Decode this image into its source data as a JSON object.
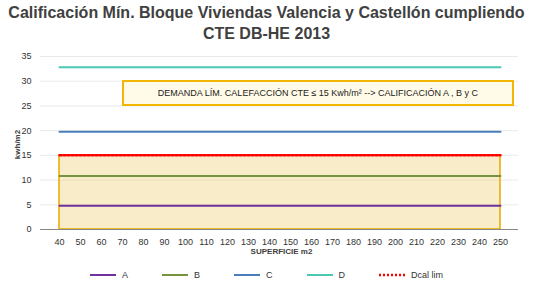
{
  "chart_data": {
    "type": "line",
    "title": "Calificación Mín. Bloque Viviendas Valencia y Castellón cumpliendo CTE DB-HE 2013",
    "x_label": "SUPERFICIE  m2",
    "y_label": "kwh/m2",
    "annotation": "DEMANDA LÍM. CALEFACCIÓN  CTE ≤ 15 Kwh/m² --> CALIFICACIÓN A , B y C",
    "categories": [
      40,
      50,
      60,
      70,
      80,
      90,
      100,
      110,
      120,
      130,
      140,
      150,
      160,
      170,
      180,
      190,
      200,
      210,
      220,
      230,
      240,
      250
    ],
    "series": [
      {
        "name": "A",
        "color": "#7030a0",
        "line_style": "solid",
        "values": [
          4.8,
          4.8,
          4.8,
          4.8,
          4.8,
          4.8,
          4.8,
          4.8,
          4.8,
          4.8,
          4.8,
          4.8,
          4.8,
          4.8,
          4.8,
          4.8,
          4.8,
          4.8,
          4.8,
          4.8,
          4.8,
          4.8
        ]
      },
      {
        "name": "B",
        "color": "#77933c",
        "line_style": "solid",
        "values": [
          10.8,
          10.8,
          10.8,
          10.8,
          10.8,
          10.8,
          10.8,
          10.8,
          10.8,
          10.8,
          10.8,
          10.8,
          10.8,
          10.8,
          10.8,
          10.8,
          10.8,
          10.8,
          10.8,
          10.8,
          10.8,
          10.8
        ]
      },
      {
        "name": "C",
        "color": "#4a7ebb",
        "line_style": "solid",
        "values": [
          19.8,
          19.8,
          19.8,
          19.8,
          19.8,
          19.8,
          19.8,
          19.8,
          19.8,
          19.8,
          19.8,
          19.8,
          19.8,
          19.8,
          19.8,
          19.8,
          19.8,
          19.8,
          19.8,
          19.8,
          19.8,
          19.8
        ]
      },
      {
        "name": "D",
        "color": "#4bc8b4",
        "line_style": "solid",
        "values": [
          32.8,
          32.8,
          32.8,
          32.8,
          32.8,
          32.8,
          32.8,
          32.8,
          32.8,
          32.8,
          32.8,
          32.8,
          32.8,
          32.8,
          32.8,
          32.8,
          32.8,
          32.8,
          32.8,
          32.8,
          32.8,
          32.8
        ]
      },
      {
        "name": "Dcal lim",
        "color": "#ff0000",
        "line_style": "dotted",
        "values": [
          15,
          15,
          15,
          15,
          15,
          15,
          15,
          15,
          15,
          15,
          15,
          15,
          15,
          15,
          15,
          15,
          15,
          15,
          15,
          15,
          15,
          15
        ]
      }
    ],
    "ylim": [
      0,
      35
    ],
    "yticks": [
      0,
      5,
      10,
      15,
      20,
      25,
      30,
      35
    ],
    "grid": true,
    "legend": "bottom"
  }
}
